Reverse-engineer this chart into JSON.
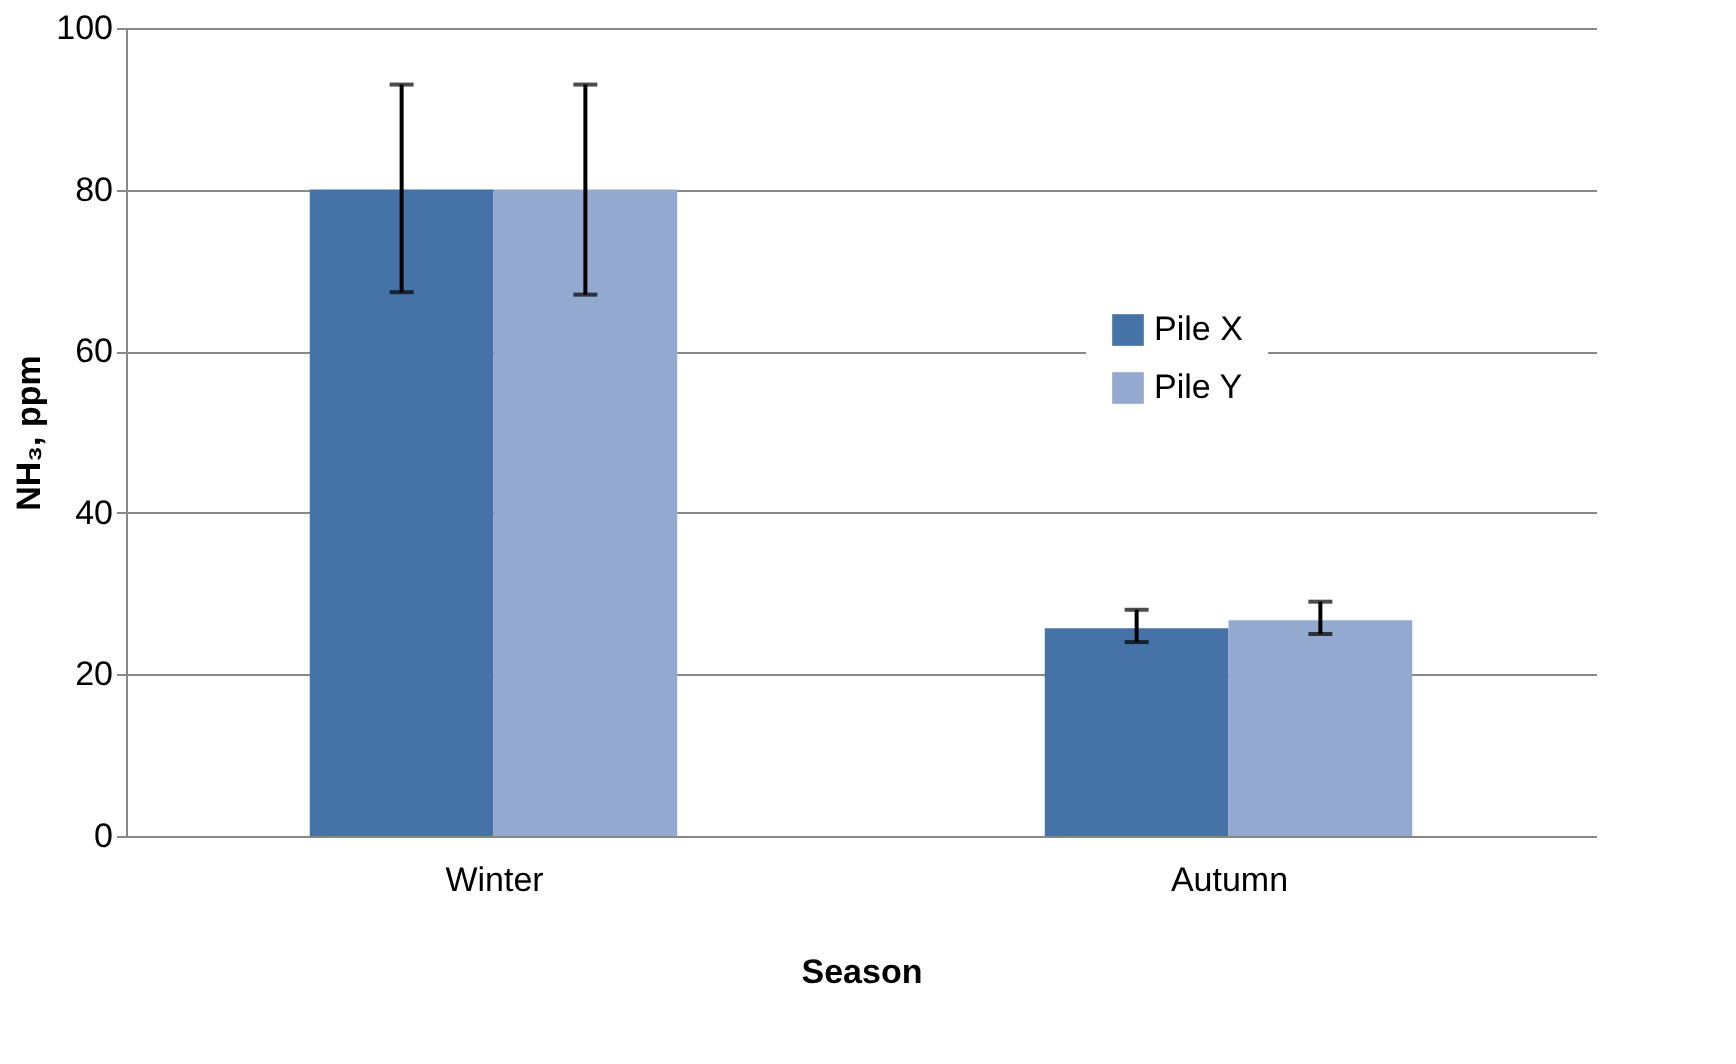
{
  "chart_data": {
    "type": "bar",
    "xlabel": "Season",
    "ylabel": "NH₃, ppm",
    "categories": [
      "Winter",
      "Autumn"
    ],
    "series": [
      {
        "name": "Pile X",
        "color": "#4673a7",
        "values": [
          80,
          25.7
        ],
        "errors": [
          [
            67.3,
            93
          ],
          [
            24,
            28
          ]
        ]
      },
      {
        "name": "Pile Y",
        "color": "#94a9cf",
        "values": [
          80,
          26.7
        ],
        "errors": [
          [
            67,
            93
          ],
          [
            25,
            29
          ]
        ]
      }
    ],
    "ylim": [
      0,
      100
    ],
    "yticks": [
      0,
      20,
      40,
      60,
      80,
      100
    ],
    "grid": "y",
    "legend": "right"
  }
}
